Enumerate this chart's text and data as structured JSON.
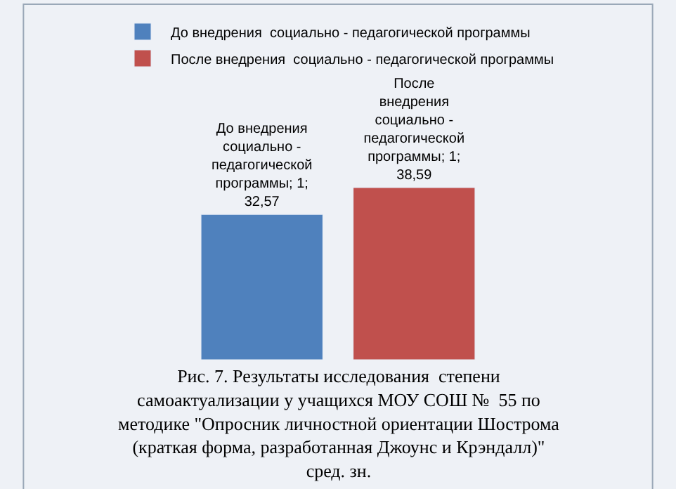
{
  "chart_data": {
    "type": "bar",
    "categories": [
      null
    ],
    "series": [
      {
        "name": "До внедрения  социально - педагогической программы",
        "color": "#4f81bd",
        "values": [
          32.57
        ],
        "value_labels": [
          "До внедрения социально - педагогической программы; 1; 32,57"
        ]
      },
      {
        "name": "После внедрения  социально - педагогической программы",
        "color": "#c0504d",
        "values": [
          38.59
        ],
        "value_labels": [
          "После внедрения социально - педагогической программы; 1; 38,59"
        ]
      }
    ],
    "tick_labels": false,
    "grid": false,
    "legend": "top",
    "annotations": [
      "Рис. 7. Результаты исследования  степени самоактуализации у учащихся МОУ СОШ №  55 по методике \"Опросник личностной ориентации Шострома (краткая форма, разработанная Джоунс и Крэндалл)\" сред. зн."
    ]
  }
}
